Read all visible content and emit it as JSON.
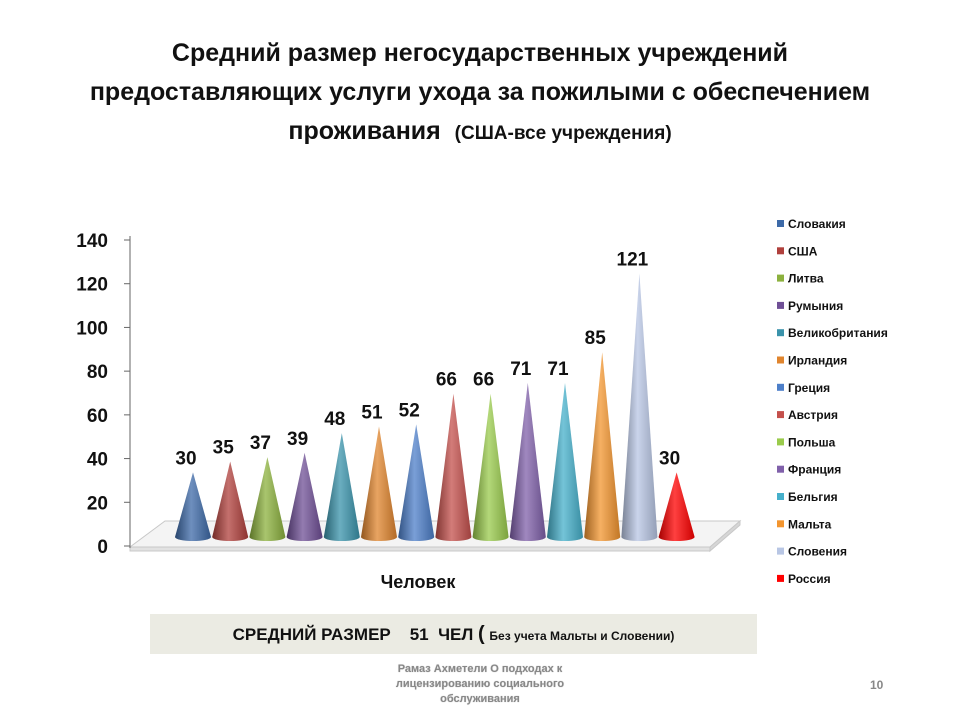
{
  "title": {
    "line1": "Средний размер негосударственных учреждений",
    "line2": "предоставляющих услуги ухода за пожилыми с обеспечением",
    "line3": "проживания",
    "subtitle": "(США-все учреждения)"
  },
  "chart_data": {
    "type": "bar",
    "style": "3d-cone",
    "categories": [
      "Словакия",
      "США",
      "Литва",
      "Румыния",
      "Великобритания",
      "Ирландия",
      "Греция",
      "Австрия",
      "Польша",
      "Франция",
      "Бельгия",
      "Мальта",
      "Словения",
      "Россия"
    ],
    "values": [
      30,
      35,
      37,
      39,
      48,
      51,
      52,
      66,
      66,
      71,
      71,
      85,
      121,
      30
    ],
    "colors": [
      "#3d6aa8",
      "#b0403c",
      "#8cb13e",
      "#6f4f96",
      "#3a93ab",
      "#e0852e",
      "#4d7fc9",
      "#c4504c",
      "#9acb4c",
      "#8060aa",
      "#46b0cb",
      "#f3952f",
      "#b8c6e4",
      "#ff0000"
    ],
    "yticks": [
      0,
      20,
      40,
      60,
      80,
      100,
      120,
      140
    ],
    "ylim": [
      0,
      140
    ],
    "xlabel": "Человек",
    "ylabel": "",
    "legend_position": "right"
  },
  "summary": {
    "label": "СРЕДНИЙ РАЗМЕР",
    "value": "51",
    "unit": "ЧЕЛ",
    "paren_open": "(",
    "note": "Без учета Мальты и Словении)"
  },
  "footer": {
    "line1": "Рамаз Ахметели О подходах к",
    "line2": "лицензированию социального",
    "line3": "обслуживания"
  },
  "page_number": "10"
}
